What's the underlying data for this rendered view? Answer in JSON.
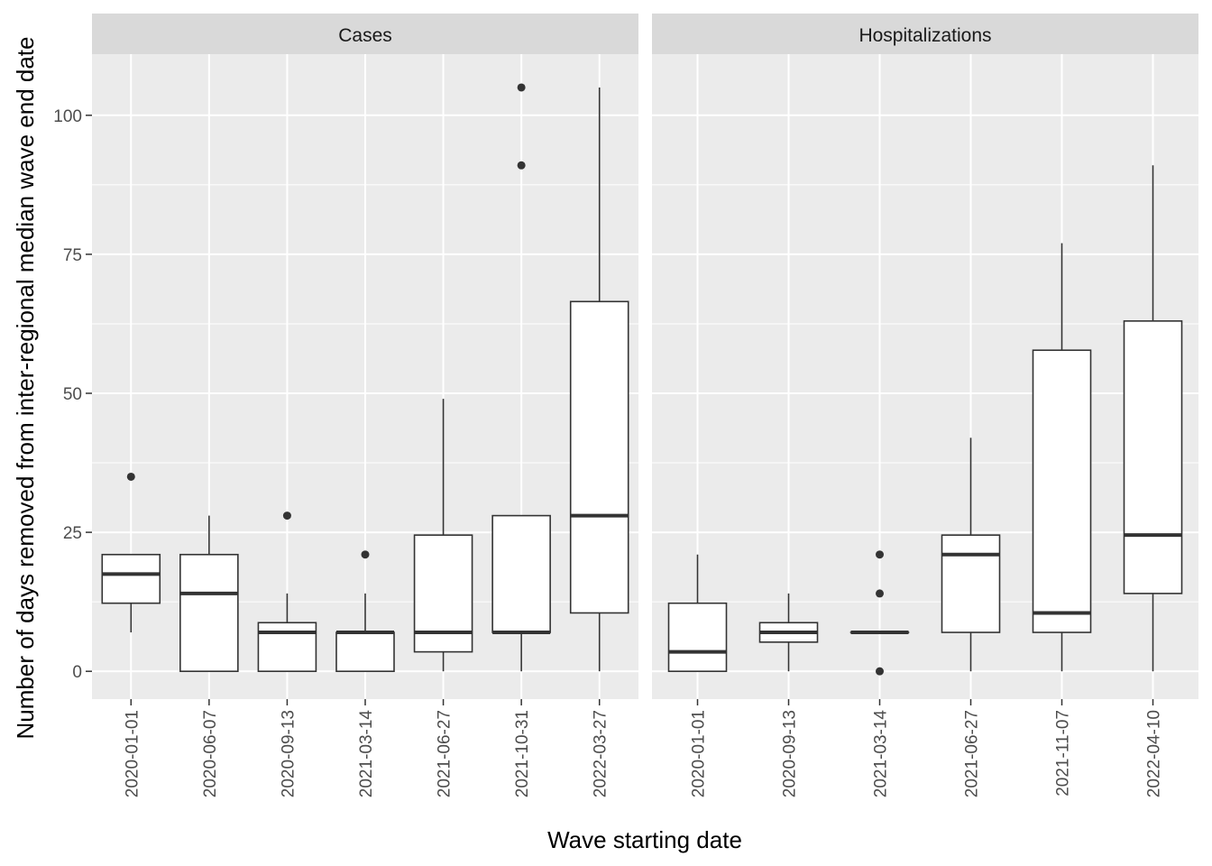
{
  "chart_data": {
    "type": "boxplot",
    "xlabel": "Wave starting date",
    "ylabel": "Number of days removed from inter-regional median wave end date",
    "ylim": [
      -5,
      111
    ],
    "y_ticks": [
      0,
      25,
      50,
      75,
      100
    ],
    "grid": true,
    "legend": "none",
    "colors": {
      "panel_bg": "#ebebeb",
      "strip_bg": "#d9d9d9",
      "grid_major": "#ffffff",
      "box_fill": "#ffffff",
      "box_line": "#333333"
    },
    "panels": [
      {
        "title": "Cases",
        "categories": [
          "2020-01-01",
          "2020-06-07",
          "2020-09-13",
          "2021-03-14",
          "2021-06-27",
          "2021-10-31",
          "2022-03-27"
        ],
        "boxes": [
          {
            "lower": 7,
            "q1": 12.25,
            "median": 17.5,
            "q3": 21,
            "upper": 21,
            "outliers": [
              35
            ]
          },
          {
            "lower": 0,
            "q1": 0,
            "median": 14,
            "q3": 21,
            "upper": 28,
            "outliers": []
          },
          {
            "lower": 0,
            "q1": 0,
            "median": 7,
            "q3": 8.75,
            "upper": 14,
            "outliers": [
              28
            ]
          },
          {
            "lower": 0,
            "q1": 0,
            "median": 7,
            "q3": 7,
            "upper": 14,
            "outliers": [
              21
            ]
          },
          {
            "lower": 0,
            "q1": 3.5,
            "median": 7,
            "q3": 24.5,
            "upper": 49,
            "outliers": []
          },
          {
            "lower": 0,
            "q1": 7,
            "median": 7,
            "q3": 28,
            "upper": 28,
            "outliers": [
              91,
              105
            ]
          },
          {
            "lower": 0,
            "q1": 10.5,
            "median": 28,
            "q3": 66.5,
            "upper": 105,
            "outliers": []
          }
        ]
      },
      {
        "title": "Hospitalizations",
        "categories": [
          "2020-01-01",
          "2020-09-13",
          "2021-03-14",
          "2021-06-27",
          "2021-11-07",
          "2022-04-10"
        ],
        "boxes": [
          {
            "lower": 0,
            "q1": 0,
            "median": 3.5,
            "q3": 12.25,
            "upper": 21,
            "outliers": []
          },
          {
            "lower": 0,
            "q1": 5.25,
            "median": 7,
            "q3": 8.75,
            "upper": 14,
            "outliers": []
          },
          {
            "lower": 7,
            "q1": 7,
            "median": 7,
            "q3": 7,
            "upper": 7,
            "outliers": [
              0,
              14,
              21
            ]
          },
          {
            "lower": 0,
            "q1": 7,
            "median": 21,
            "q3": 24.5,
            "upper": 42,
            "outliers": []
          },
          {
            "lower": 0,
            "q1": 7,
            "median": 10.5,
            "q3": 57.75,
            "upper": 77,
            "outliers": []
          },
          {
            "lower": 0,
            "q1": 14,
            "median": 24.5,
            "q3": 63,
            "upper": 91,
            "outliers": []
          }
        ]
      }
    ]
  }
}
